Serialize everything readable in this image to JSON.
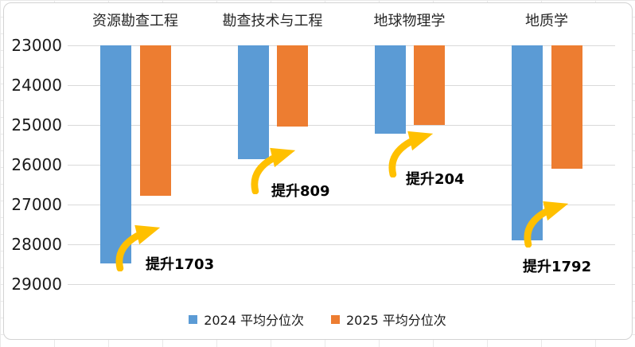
{
  "colors": {
    "series_2024": "#5B9BD5",
    "series_2025": "#ED7D31",
    "arrow": "#FFC000",
    "gridline": "#d9d9d9"
  },
  "chart_data": {
    "type": "bar",
    "title": "",
    "categories": [
      "资源勘查工程",
      "勘查技术与工程",
      "地球物理学",
      "地质学"
    ],
    "series": [
      {
        "name": "2024 平均分位次",
        "color": "#5B9BD5",
        "values": [
          28480,
          25850,
          25210,
          27900
        ]
      },
      {
        "name": "2025 平均分位次",
        "color": "#ED7D31",
        "values": [
          26777,
          25041,
          25006,
          26108
        ]
      }
    ],
    "annotations": [
      {
        "label": "提升1703",
        "value": 1703
      },
      {
        "label": "提升809",
        "value": 809
      },
      {
        "label": "提升204",
        "value": 204
      },
      {
        "label": "提升1792",
        "value": 1792
      }
    ],
    "y_axis": {
      "min": 23000,
      "max": 29000,
      "tick_interval": 1000,
      "inverted": true,
      "ticks": [
        "23000",
        "24000",
        "25000",
        "26000",
        "27000",
        "28000",
        "29000"
      ]
    },
    "grid": true,
    "legend_position": "bottom"
  }
}
